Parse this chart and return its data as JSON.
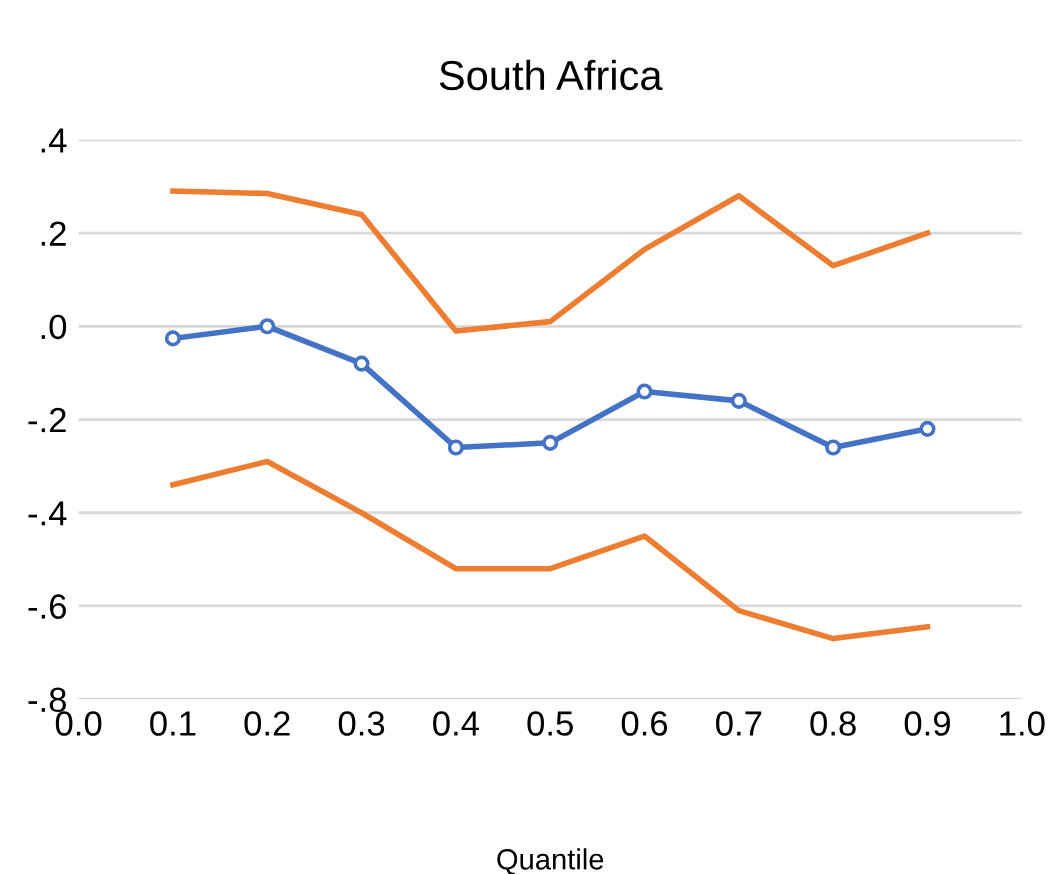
{
  "chart_data": {
    "type": "line",
    "title": "South Africa",
    "xlabel": "Quantile",
    "x": [
      0.1,
      0.2,
      0.3,
      0.4,
      0.5,
      0.6,
      0.7,
      0.8,
      0.9
    ],
    "series": [
      {
        "color": "#ed7d31",
        "values": [
          0.29,
          0.285,
          0.24,
          -0.01,
          0.01,
          0.165,
          0.28,
          0.13,
          0.2
        ],
        "marker": "none"
      },
      {
        "color": "#4472c4",
        "values": [
          -0.026,
          0.0,
          -0.08,
          -0.26,
          -0.25,
          -0.14,
          -0.16,
          -0.26,
          -0.22
        ],
        "marker": "circle"
      },
      {
        "color": "#ed7d31",
        "values": [
          -0.34,
          -0.29,
          -0.4,
          -0.52,
          -0.52,
          -0.45,
          -0.61,
          -0.67,
          -0.645
        ],
        "marker": "none"
      }
    ],
    "xlim": [
      0.0,
      1.0
    ],
    "ylim": [
      -0.8,
      0.4
    ],
    "xticks": [
      {
        "value": 0.0,
        "label": "0.0"
      },
      0.1,
      0.2,
      0.3,
      0.4,
      0.5,
      0.6,
      0.7,
      0.8,
      0.9,
      {
        "value": 1.0,
        "label": "1.0"
      }
    ],
    "yticks": [
      {
        "value": -0.8,
        "label": "-.8"
      },
      {
        "value": -0.6,
        "label": "-.6"
      },
      {
        "value": -0.4,
        "label": "-.4"
      },
      {
        "value": -0.2,
        "label": "-.2"
      },
      {
        "value": 0.0,
        "label": ".0"
      },
      {
        "value": 0.2,
        "label": ".2"
      },
      {
        "value": 0.4,
        "label": ".4"
      }
    ],
    "grid": "y",
    "line_style": "solid",
    "legend": false
  }
}
